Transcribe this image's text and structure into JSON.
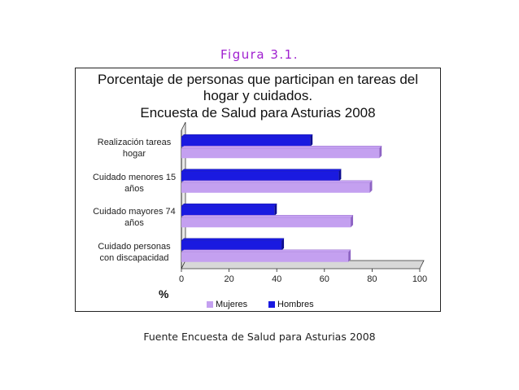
{
  "figure_label": "Figura 3.1.",
  "source_note": "Fuente Encuesta de Salud para Asturias 2008",
  "colors": {
    "mujeres": "#c4a0f0",
    "hombres": "#1a1ae0",
    "frame": "#222222",
    "fig_label": "#a020d0"
  },
  "chart_data": {
    "type": "bar",
    "orientation": "horizontal",
    "title": [
      "Porcentaje de personas que participan en tareas del",
      "hogar y cuidados.",
      "Encuesta de Salud para Asturias 2008"
    ],
    "xlabel": "%",
    "categories": [
      [
        "Realización tareas",
        "hogar"
      ],
      [
        "Cuidado menores 15",
        "años"
      ],
      [
        "Cuidado mayores 74",
        "años"
      ],
      [
        "Cuidado personas",
        "con discapacidad"
      ]
    ],
    "series": [
      {
        "name": "Hombres",
        "values": [
          54,
          66,
          39,
          42
        ]
      },
      {
        "name": "Mujeres",
        "values": [
          83,
          79,
          71,
          70
        ]
      }
    ],
    "xlim": [
      0,
      100
    ],
    "xticks": [
      "0",
      "20",
      "40",
      "60",
      "80",
      "100"
    ],
    "legend": {
      "position": "bottom",
      "order": [
        "Mujeres",
        "Hombres"
      ]
    },
    "grid": false
  }
}
